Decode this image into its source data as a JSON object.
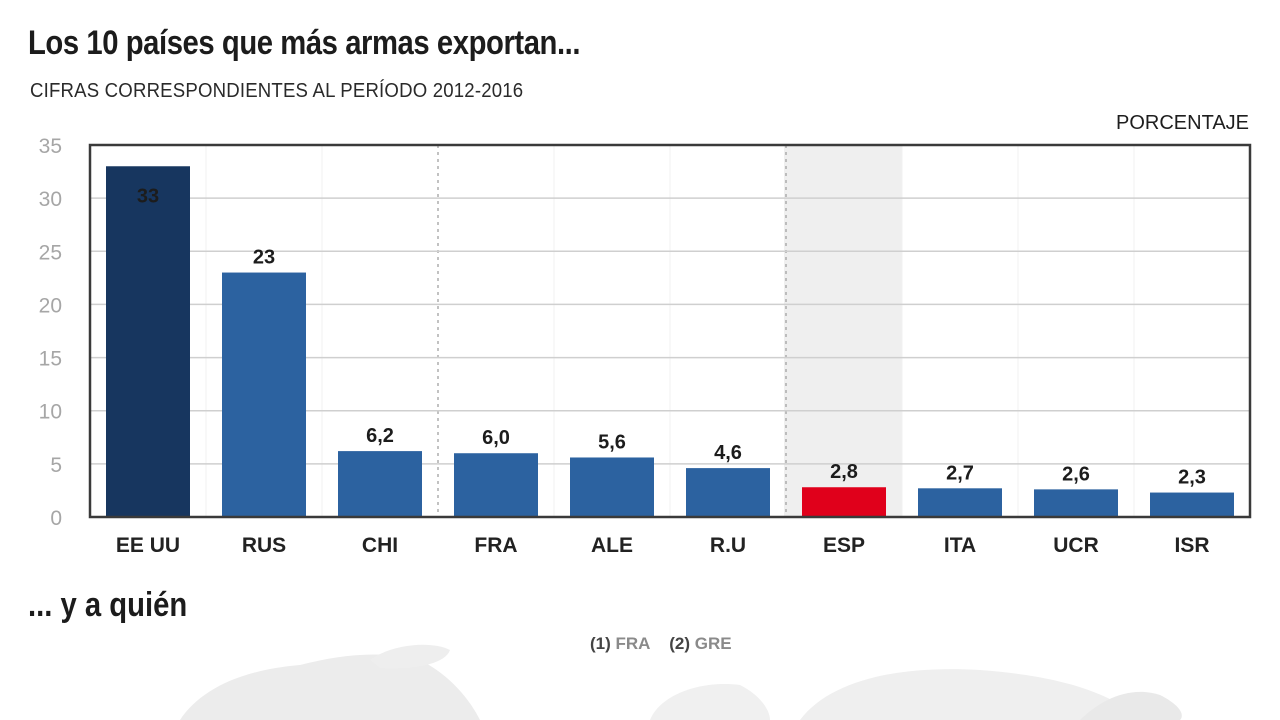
{
  "header": {
    "title": "Los 10 países que más armas exportan...",
    "subtitle": "CIFRAS CORRESPONDIENTES AL PERÍODO 2012-2016",
    "unit_label": "PORCENTAJE"
  },
  "colors": {
    "leader": "#17365f",
    "default": "#2c62a0",
    "highlight": "#e0001b",
    "highlight_text": "#d4173a",
    "highlight_band": "#efefef"
  },
  "chart_data": {
    "type": "bar",
    "title": "Los 10 países que más armas exportan...",
    "subtitle": "CIFRAS CORRESPONDIENTES AL PERÍODO 2012-2016",
    "xlabel": "",
    "ylabel": "PORCENTAJE",
    "ylim": [
      0,
      35
    ],
    "yticks": [
      0,
      5,
      10,
      15,
      20,
      25,
      30,
      35
    ],
    "grid": true,
    "categories": [
      "EE UU",
      "RUS",
      "CHI",
      "FRA",
      "ALE",
      "R.U",
      "ESP",
      "ITA",
      "UCR",
      "ISR"
    ],
    "values": [
      33,
      23,
      6.2,
      6.0,
      5.6,
      4.6,
      2.8,
      2.7,
      2.6,
      2.3
    ],
    "value_labels": [
      "33",
      "23",
      "6,2",
      "6,0",
      "5,6",
      "4,6",
      "2,8",
      "2,7",
      "2,6",
      "2,3"
    ],
    "highlighted_category": "ESP",
    "leader_category": "EE UU"
  },
  "section2": {
    "heading": "... y a quién",
    "legend": [
      {
        "number": "(1)",
        "code": "FRA"
      },
      {
        "number": "(2)",
        "code": "GRE"
      }
    ]
  }
}
